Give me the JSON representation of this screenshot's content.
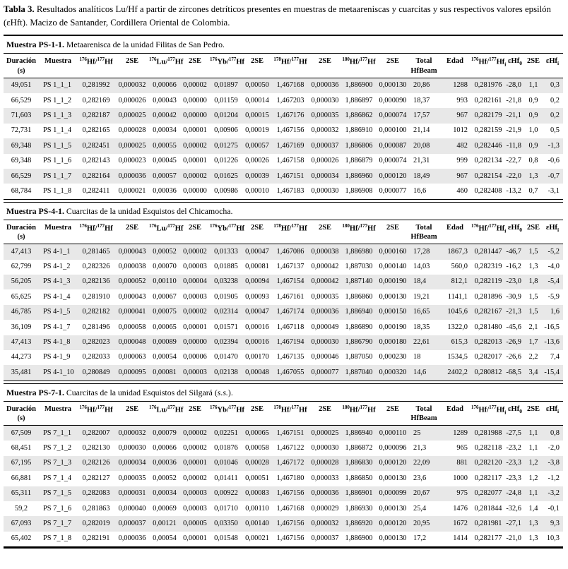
{
  "caption": {
    "label": "Tabla 3.",
    "text": " Resultados analíticos Lu/Hf a partir de zircones detríticos presentes en muestras de metaareniscas y cuarcitas y sus respectivos valores epsilón (εHft). Macizo de Santander, Cordillera Oriental de Colombia."
  },
  "columns": [
    "Duración<br>(s)",
    "Muestra",
    "<sup>176</sup>Hf/<sup>177</sup>Hf",
    "2SE",
    "<sup>176</sup>Lu/<sup>177</sup>Hf",
    "2SE",
    "<sup>176</sup>Yb/<sup>177</sup>Hf",
    "2SE",
    "<sup>178</sup>Hf/<sup>177</sup>Hf",
    "2SE",
    "<sup>180</sup>Hf/<sup>177</sup>Hf",
    "2SE",
    "Total<br>HfBeam",
    "Edad",
    "<sup>176</sup>Hf/<sup>177</sup>Hf<sub>i</sub>",
    "εHf<sub>0</sub>",
    "2SE",
    "εHf<sub>i</sub>"
  ],
  "sections": [
    {
      "label": "Muestra PS-1-1.",
      "desc_html": " Metaarenisca de la unidad Filitas de San Pedro.",
      "rows": [
        [
          "49,051",
          "PS 1_1_1",
          "0,281992",
          "0,000032",
          "0,00066",
          "0,00002",
          "0,01897",
          "0,00050",
          "1,467168",
          "0,000036",
          "1,886900",
          "0,000130",
          "20,86",
          "1288",
          "0,281976",
          "-28,0",
          "1,1",
          "0,3"
        ],
        [
          "66,529",
          "PS 1_1_2",
          "0,282169",
          "0,000026",
          "0,00043",
          "0,00000",
          "0,01159",
          "0,00014",
          "1,467203",
          "0,000030",
          "1,886897",
          "0,000090",
          "18,37",
          "993",
          "0,282161",
          "-21,8",
          "0,9",
          "0,2"
        ],
        [
          "71,603",
          "PS 1_1_3",
          "0,282187",
          "0,000025",
          "0,00042",
          "0,00000",
          "0,01204",
          "0,00015",
          "1,467176",
          "0,000035",
          "1,886862",
          "0,000074",
          "17,57",
          "967",
          "0,282179",
          "-21,1",
          "0,9",
          "0,2"
        ],
        [
          "72,731",
          "PS 1_1_4",
          "0,282165",
          "0,000028",
          "0,00034",
          "0,00001",
          "0,00906",
          "0,00019",
          "1,467156",
          "0,000032",
          "1,886910",
          "0,000100",
          "21,14",
          "1012",
          "0,282159",
          "-21,9",
          "1,0",
          "0,5"
        ],
        [
          "69,348",
          "PS 1_1_5",
          "0,282451",
          "0,000025",
          "0,00055",
          "0,00002",
          "0,01275",
          "0,00057",
          "1,467169",
          "0,000037",
          "1,886806",
          "0,000087",
          "20,08",
          "482",
          "0,282446",
          "-11,8",
          "0,9",
          "-1,3"
        ],
        [
          "69,348",
          "PS 1_1_6",
          "0,282143",
          "0,000023",
          "0,00045",
          "0,00001",
          "0,01226",
          "0,00026",
          "1,467158",
          "0,000026",
          "1,886879",
          "0,000074",
          "21,31",
          "999",
          "0,282134",
          "-22,7",
          "0,8",
          "-0,6"
        ],
        [
          "66,529",
          "PS 1_1_7",
          "0,282164",
          "0,000036",
          "0,00057",
          "0,00002",
          "0,01625",
          "0,00039",
          "1,467151",
          "0,000034",
          "1,886960",
          "0,000120",
          "18,49",
          "967",
          "0,282154",
          "-22,0",
          "1,3",
          "-0,7"
        ],
        [
          "68,784",
          "PS 1_1_8",
          "0,282411",
          "0,000021",
          "0,00036",
          "0,00000",
          "0,00986",
          "0,00010",
          "1,467183",
          "0,000030",
          "1,886908",
          "0,000077",
          "16,6",
          "460",
          "0,282408",
          "-13,2",
          "0,7",
          "-3,1"
        ]
      ]
    },
    {
      "label": "Muestra PS-4-1.",
      "desc_html": " Cuarcitas de la unidad Esquistos del Chicamocha.",
      "rows": [
        [
          "47,413",
          "PS 4-1_1",
          "0,281465",
          "0,000043",
          "0,00052",
          "0,00002",
          "0,01333",
          "0,00047",
          "1,467086",
          "0,000038",
          "1,886980",
          "0,000160",
          "17,28",
          "1867,3",
          "0,281447",
          "-46,7",
          "1,5",
          "-5,2"
        ],
        [
          "62,799",
          "PS 4-1_2",
          "0,282326",
          "0,000038",
          "0,00070",
          "0,00003",
          "0,01885",
          "0,00081",
          "1,467137",
          "0,000042",
          "1,887030",
          "0,000140",
          "14,03",
          "560,0",
          "0,282319",
          "-16,2",
          "1,3",
          "-4,0"
        ],
        [
          "56,205",
          "PS 4-1_3",
          "0,282136",
          "0,000052",
          "0,00110",
          "0,00004",
          "0,03238",
          "0,00094",
          "1,467154",
          "0,000042",
          "1,887140",
          "0,000190",
          "18,4",
          "812,1",
          "0,282119",
          "-23,0",
          "1,8",
          "-5,4"
        ],
        [
          "65,625",
          "PS 4-1_4",
          "0,281910",
          "0,000043",
          "0,00067",
          "0,00003",
          "0,01905",
          "0,00093",
          "1,467161",
          "0,000035",
          "1,886860",
          "0,000130",
          "19,21",
          "1141,1",
          "0,281896",
          "-30,9",
          "1,5",
          "-5,9"
        ],
        [
          "46,785",
          "PS 4-1_5",
          "0,282182",
          "0,000041",
          "0,00075",
          "0,00002",
          "0,02314",
          "0,00047",
          "1,467174",
          "0,000036",
          "1,886940",
          "0,000150",
          "16,65",
          "1045,6",
          "0,282167",
          "-21,3",
          "1,5",
          "1,6"
        ],
        [
          "36,109",
          "PS 4-1_7",
          "0,281496",
          "0,000058",
          "0,00065",
          "0,00001",
          "0,01571",
          "0,00016",
          "1,467118",
          "0,000049",
          "1,886890",
          "0,000190",
          "18,35",
          "1322,0",
          "0,281480",
          "-45,6",
          "2,1",
          "-16,5"
        ],
        [
          "47,413",
          "PS 4-1_8",
          "0,282023",
          "0,000048",
          "0,00089",
          "0,00000",
          "0,02394",
          "0,00016",
          "1,467194",
          "0,000030",
          "1,886790",
          "0,000180",
          "22,61",
          "615,3",
          "0,282013",
          "-26,9",
          "1,7",
          "-13,6"
        ],
        [
          "44,273",
          "PS 4-1_9",
          "0,282033",
          "0,000063",
          "0,00054",
          "0,00006",
          "0,01470",
          "0,00170",
          "1,467135",
          "0,000046",
          "1,887050",
          "0,000230",
          "18",
          "1534,5",
          "0,282017",
          "-26,6",
          "2,2",
          "7,4"
        ],
        [
          "35,481",
          "PS 4-1_10",
          "0,280849",
          "0,000095",
          "0,00081",
          "0,00003",
          "0,02138",
          "0,00048",
          "1,467055",
          "0,000077",
          "1,887040",
          "0,000320",
          "14,6",
          "2402,2",
          "0,280812",
          "-68,5",
          "3,4",
          "-15,4"
        ]
      ]
    },
    {
      "label": "Muestra PS-7-1.",
      "desc_html": " Cuarcitas de la unidad Esquistos del Silgará (<i>s.s.</i>).",
      "rows": [
        [
          "67,509",
          "PS 7_1_1",
          "0,282007",
          "0,000032",
          "0,00079",
          "0,00002",
          "0,02251",
          "0,00065",
          "1,467151",
          "0,000025",
          "1,886940",
          "0,000110",
          "25",
          "1289",
          "0,281988",
          "-27,5",
          "1,1",
          "0,8"
        ],
        [
          "68,451",
          "PS 7_1_2",
          "0,282130",
          "0,000030",
          "0,00066",
          "0,00002",
          "0,01876",
          "0,00058",
          "1,467122",
          "0,000030",
          "1,886872",
          "0,000096",
          "21,3",
          "965",
          "0,282118",
          "-23,2",
          "1,1",
          "-2,0"
        ],
        [
          "67,195",
          "PS 7_1_3",
          "0,282126",
          "0,000034",
          "0,00036",
          "0,00001",
          "0,01046",
          "0,00028",
          "1,467172",
          "0,000028",
          "1,886830",
          "0,000120",
          "22,09",
          "881",
          "0,282120",
          "-23,3",
          "1,2",
          "-3,8"
        ],
        [
          "66,881",
          "PS 7_1_4",
          "0,282127",
          "0,000035",
          "0,00052",
          "0,00002",
          "0,01411",
          "0,00051",
          "1,467180",
          "0,000033",
          "1,886850",
          "0,000130",
          "23,6",
          "1000",
          "0,282117",
          "-23,3",
          "1,2",
          "-1,2"
        ],
        [
          "65,311",
          "PS 7_1_5",
          "0,282083",
          "0,000031",
          "0,00034",
          "0,00003",
          "0,00922",
          "0,00083",
          "1,467156",
          "0,000036",
          "1,886901",
          "0,000099",
          "20,67",
          "975",
          "0,282077",
          "-24,8",
          "1,1",
          "-3,2"
        ],
        [
          "59,2",
          "PS 7_1_6",
          "0,281863",
          "0,000040",
          "0,00069",
          "0,00003",
          "0,01710",
          "0,00110",
          "1,467168",
          "0,000029",
          "1,886930",
          "0,000130",
          "25,4",
          "1476",
          "0,281844",
          "-32,6",
          "1,4",
          "-0,1"
        ],
        [
          "67,093",
          "PS 7_1_7",
          "0,282019",
          "0,000037",
          "0,00121",
          "0,00005",
          "0,03350",
          "0,00140",
          "1,467156",
          "0,000032",
          "1,886920",
          "0,000120",
          "20,95",
          "1672",
          "0,281981",
          "-27,1",
          "1,3",
          "9,3"
        ],
        [
          "65,402",
          "PS 7_1_8",
          "0,282191",
          "0,000036",
          "0,00054",
          "0,00001",
          "0,01548",
          "0,00021",
          "1,467156",
          "0,000037",
          "1,886900",
          "0,000130",
          "17,2",
          "1414",
          "0,282177",
          "-21,0",
          "1,3",
          "10,3"
        ]
      ]
    }
  ]
}
